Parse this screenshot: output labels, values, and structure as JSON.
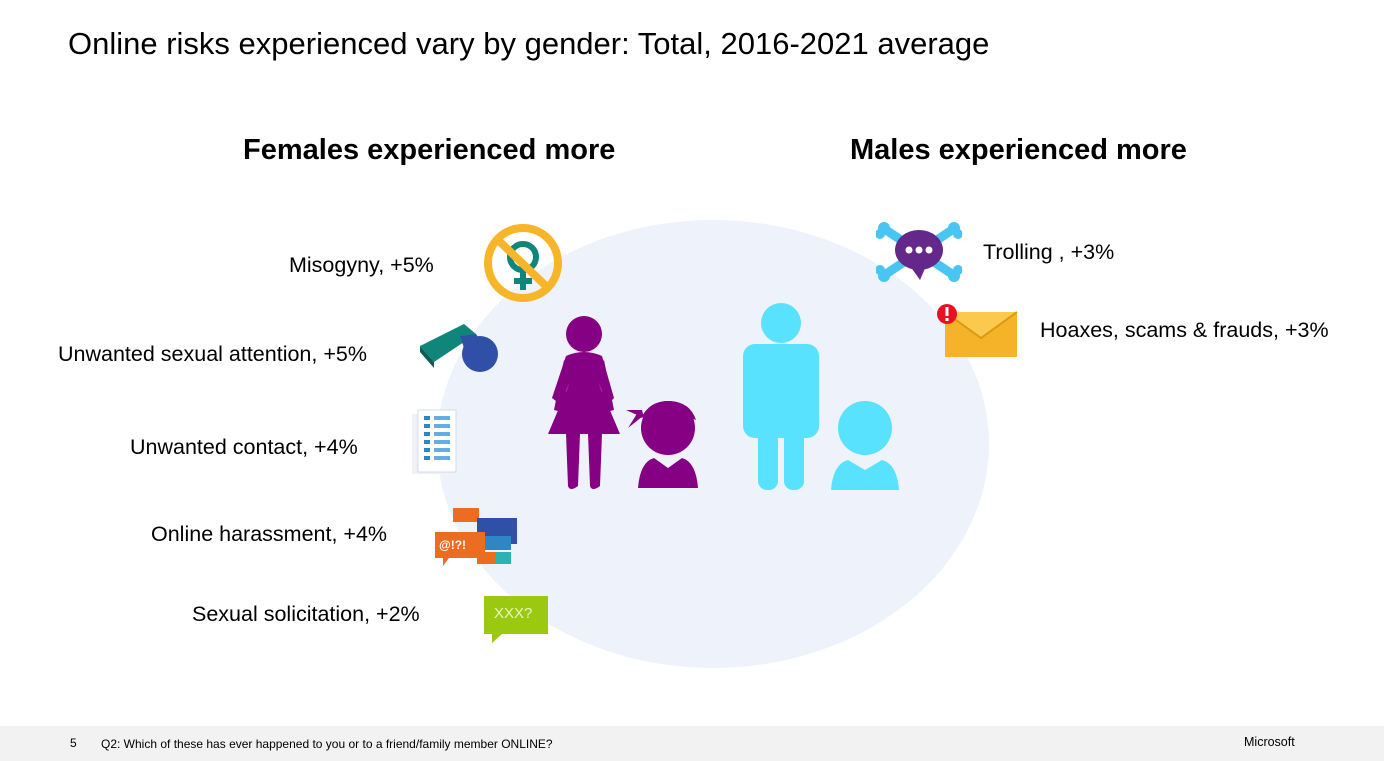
{
  "title": "Online risks experienced vary by gender: Total, 2016-2021 average",
  "female_heading": "Females experienced more",
  "male_heading": "Males experienced more",
  "female_risks": [
    {
      "label": "Misogyny, +5%",
      "icon": "misogyny-icon"
    },
    {
      "label": "Unwanted sexual attention, +5%",
      "icon": "whistle-icon"
    },
    {
      "label": "Unwanted contact, +4%",
      "icon": "contact-list-icon"
    },
    {
      "label": "Online harassment, +4%",
      "icon": "harassment-speech-bubbles-icon"
    },
    {
      "label": "Sexual solicitation, +2%",
      "icon": "solicitation-speech-bubble-icon",
      "icon_text": "XXX?"
    }
  ],
  "male_risks": [
    {
      "label": "Trolling , +3%",
      "icon": "skull-crossbones-chat-icon"
    },
    {
      "label": "Hoaxes, scams & frauds, +3%",
      "icon": "alert-envelope-icon"
    }
  ],
  "harassment_icon_text": "@!?!",
  "footer": {
    "page_number": "5",
    "note": "Q2: Which of these has ever happened to you or to a friend/family member ONLINE?",
    "brand": "Microsoft"
  },
  "colors": {
    "female": "#850082",
    "male": "#58e2fd",
    "ellipse": "#eef3fb",
    "misogyny_orange": "#f7b529",
    "whistle_teal": "#10857a",
    "whistle_blue": "#3050a8",
    "solicitation_green": "#9bc90f",
    "harassment_orange": "#ec6c21",
    "troll_purple": "#63288a",
    "troll_bones": "#48c5f2",
    "envelope": "#f4b328",
    "alert_red": "#e81123"
  }
}
